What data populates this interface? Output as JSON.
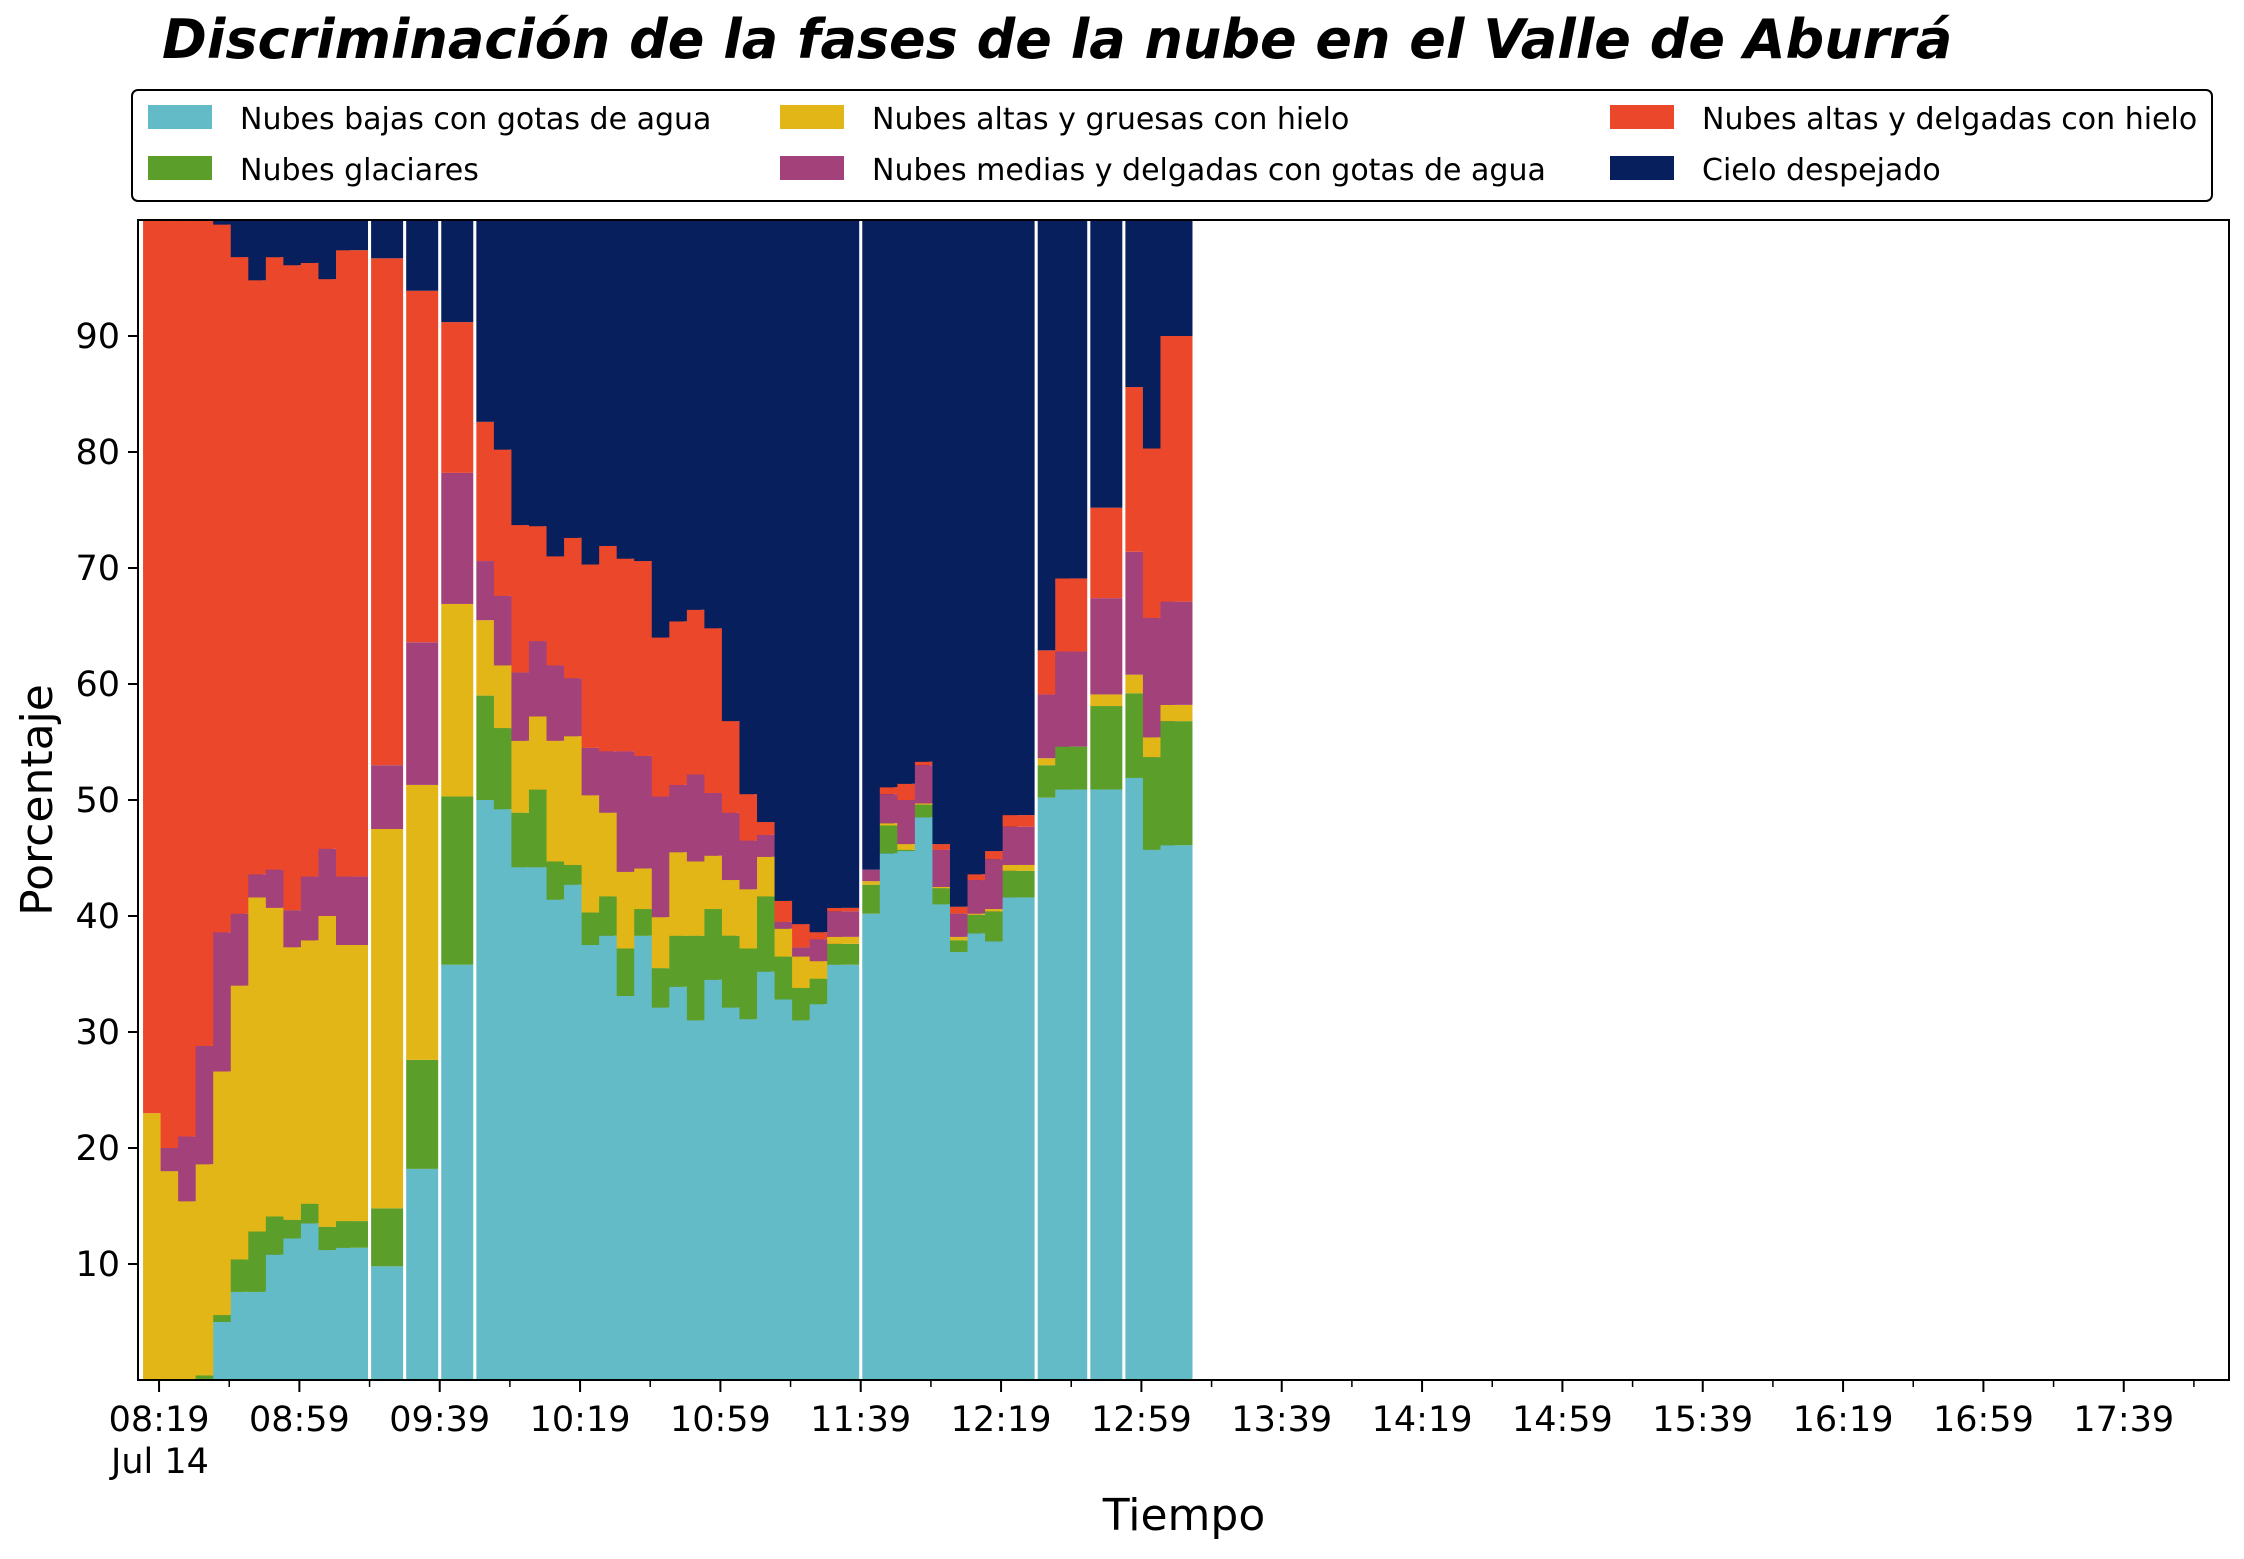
{
  "chart_data": {
    "type": "bar",
    "stacked": true,
    "title": "Discriminación de la fases de la nube en el Valle de Aburrá",
    "xlabel": "Tiempo",
    "ylabel": "Porcentaje",
    "ylim": [
      0,
      100
    ],
    "yticks": [
      10,
      20,
      30,
      40,
      50,
      60,
      70,
      80,
      90
    ],
    "x_time_range": [
      "08:13",
      "18:09"
    ],
    "xtick_labels": [
      "08:19",
      "08:59",
      "09:39",
      "10:19",
      "10:59",
      "11:39",
      "12:19",
      "12:59",
      "13:39",
      "14:19",
      "14:59",
      "15:39",
      "16:19",
      "16:59",
      "17:39"
    ],
    "xtick_sublabel": "Jul 14",
    "grid": false,
    "legend_position": "top",
    "legend_columns": 3,
    "series": [
      {
        "name": "Nubes bajas con gotas de agua",
        "color": "#64BBC8"
      },
      {
        "name": "Nubes glaciares",
        "color": "#5B9E2A"
      },
      {
        "name": "Nubes altas y gruesas con hielo",
        "color": "#E3B617"
      },
      {
        "name": "Nubes medias y delgadas con gotas de agua",
        "color": "#A3417B"
      },
      {
        "name": "Nubes altas y delgadas con hielo",
        "color": "#EB472B"
      },
      {
        "name": "Cielo despejado",
        "color": "#071F5C"
      }
    ],
    "bars": [
      {
        "time": "08:19",
        "values": [
          0,
          0,
          23,
          0,
          77,
          0
        ]
      },
      {
        "time": "08:24",
        "values": [
          0,
          0,
          18,
          2,
          80,
          0
        ]
      },
      {
        "time": "08:29",
        "values": [
          0,
          0,
          15.4,
          5.6,
          79,
          0
        ]
      },
      {
        "time": "08:34",
        "values": [
          0,
          0.4,
          18.2,
          10.2,
          71.2,
          0
        ]
      },
      {
        "time": "08:39",
        "values": [
          5,
          0.6,
          21,
          12,
          61,
          0.4
        ]
      },
      {
        "time": "08:44",
        "values": [
          7.6,
          2.8,
          23.6,
          6.2,
          56.6,
          3.2
        ]
      },
      {
        "time": "08:49",
        "values": [
          7.6,
          5.2,
          28.8,
          2,
          51.2,
          5.2
        ]
      },
      {
        "time": "08:54",
        "values": [
          10.8,
          3.3,
          26.6,
          3.3,
          52.8,
          3.2
        ]
      },
      {
        "time": "08:59",
        "values": [
          12.2,
          1.6,
          23.5,
          3.2,
          55.6,
          3.9
        ]
      },
      {
        "time": "09:04",
        "values": [
          13.5,
          1.7,
          22.7,
          5.5,
          52.9,
          3.7
        ]
      },
      {
        "time": "09:09",
        "values": [
          11.2,
          2,
          26.8,
          5.8,
          49.1,
          5.1
        ]
      },
      {
        "time": "09:14",
        "values": [
          11.4,
          2.3,
          23.8,
          5.9,
          54,
          2.6
        ]
      },
      {
        "time": "09:24",
        "values": [
          9.8,
          5,
          32.7,
          5.5,
          43.7,
          3.3
        ]
      },
      {
        "time": "09:34",
        "values": [
          18.2,
          9.4,
          23.7,
          12.3,
          30.3,
          6.1
        ]
      },
      {
        "time": "09:44",
        "values": [
          35.8,
          14.5,
          16.6,
          11.3,
          13,
          8.8
        ]
      },
      {
        "time": "09:54",
        "values": [
          50,
          9,
          6.5,
          5.1,
          12,
          17.4
        ]
      },
      {
        "time": "09:59",
        "values": [
          49.2,
          7,
          5.4,
          6,
          12.6,
          19.8
        ]
      },
      {
        "time": "10:04",
        "values": [
          44.2,
          4.7,
          6.2,
          5.9,
          12.7,
          26.3
        ]
      },
      {
        "time": "10:09",
        "values": [
          44.2,
          6.7,
          6.3,
          6.5,
          9.9,
          26.4
        ]
      },
      {
        "time": "10:14",
        "values": [
          41.4,
          3.3,
          10.4,
          6.5,
          9.4,
          29
        ]
      },
      {
        "time": "10:19",
        "values": [
          42.7,
          1.7,
          11.1,
          5,
          12.1,
          27.4
        ]
      },
      {
        "time": "10:24",
        "values": [
          37.5,
          2.8,
          10.1,
          4.1,
          15.8,
          29.7
        ]
      },
      {
        "time": "10:29",
        "values": [
          38.3,
          3.4,
          7.2,
          5.3,
          17.7,
          28.1
        ]
      },
      {
        "time": "10:34",
        "values": [
          33.1,
          4.1,
          6.6,
          10.4,
          16.6,
          29.2
        ]
      },
      {
        "time": "10:39",
        "values": [
          38.3,
          2.3,
          3.5,
          9.7,
          16.8,
          29.4
        ]
      },
      {
        "time": "10:44",
        "values": [
          32.1,
          3.4,
          4.4,
          10.4,
          13.7,
          36
        ]
      },
      {
        "time": "10:49",
        "values": [
          33.9,
          4.4,
          7.2,
          5.8,
          14.1,
          34.6
        ]
      },
      {
        "time": "10:54",
        "values": [
          31,
          7.3,
          6.4,
          7.5,
          14.2,
          33.6
        ]
      },
      {
        "time": "10:59",
        "values": [
          34.5,
          6.1,
          4.6,
          5.4,
          14.2,
          35.2
        ]
      },
      {
        "time": "11:04",
        "values": [
          32.1,
          6.2,
          4.8,
          5.8,
          7.9,
          43.2
        ]
      },
      {
        "time": "11:09",
        "values": [
          31.1,
          6.1,
          5.1,
          4.2,
          4,
          49.5
        ]
      },
      {
        "time": "11:14",
        "values": [
          35.2,
          6.5,
          3.4,
          1.9,
          1.1,
          51.9
        ]
      },
      {
        "time": "11:19",
        "values": [
          32.8,
          3.7,
          2.4,
          0.6,
          1.8,
          58.7
        ]
      },
      {
        "time": "11:24",
        "values": [
          31,
          2.8,
          2.7,
          0.8,
          2,
          60.7
        ]
      },
      {
        "time": "11:29",
        "values": [
          32.4,
          2.2,
          1.5,
          1.9,
          0.6,
          61.4
        ]
      },
      {
        "time": "11:34",
        "values": [
          35.8,
          1.8,
          0.6,
          2.2,
          0.3,
          59.3
        ]
      },
      {
        "time": "11:44",
        "values": [
          40.2,
          2.5,
          0.3,
          1,
          0,
          56
        ]
      },
      {
        "time": "11:49",
        "values": [
          45.4,
          2.4,
          0.2,
          2.5,
          0.6,
          48.9
        ]
      },
      {
        "time": "11:54",
        "values": [
          45.6,
          0.1,
          0.5,
          3.8,
          1.4,
          48.6
        ]
      },
      {
        "time": "11:59",
        "values": [
          48.5,
          1.1,
          0.1,
          3.3,
          0.3,
          46.7
        ]
      },
      {
        "time": "12:04",
        "values": [
          41,
          1.4,
          0.1,
          3.2,
          0.5,
          53.8
        ]
      },
      {
        "time": "12:09",
        "values": [
          36.9,
          1,
          0.3,
          2,
          0.6,
          59.2
        ]
      },
      {
        "time": "12:14",
        "values": [
          38.5,
          1.6,
          0.1,
          2.9,
          0.5,
          56.4
        ]
      },
      {
        "time": "12:19",
        "values": [
          37.8,
          2.6,
          0.2,
          4.3,
          0.7,
          54.4
        ]
      },
      {
        "time": "12:24",
        "values": [
          41.6,
          2.3,
          0.5,
          3.3,
          1,
          51.3
        ]
      },
      {
        "time": "12:34",
        "values": [
          50.2,
          2.8,
          0.6,
          5.5,
          3.8,
          37.1
        ]
      },
      {
        "time": "12:39",
        "values": [
          50.9,
          3.7,
          0,
          8.2,
          6.3,
          30.9
        ]
      },
      {
        "time": "12:49",
        "values": [
          50.9,
          7.2,
          1,
          8.3,
          7.8,
          24.8
        ]
      },
      {
        "time": "12:59",
        "values": [
          51.9,
          7.3,
          1.6,
          10.6,
          14.2,
          14.4
        ]
      },
      {
        "time": "13:04",
        "values": [
          45.7,
          8,
          1.7,
          10.3,
          14.6,
          19.7
        ]
      },
      {
        "time": "13:09",
        "values": [
          46.1,
          10.7,
          1.4,
          8.9,
          22.9,
          10
        ]
      }
    ]
  },
  "x_index_times": [
    "08:19",
    "08:24",
    "08:29",
    "08:34",
    "08:39",
    "08:44",
    "08:49",
    "08:54",
    "08:59",
    "09:04",
    "09:09",
    "09:14",
    "09:24",
    "09:34",
    "09:44",
    "09:54",
    "09:59",
    "10:04",
    "10:09",
    "10:14",
    "10:19",
    "10:24",
    "10:29",
    "10:34",
    "10:39",
    "10:44",
    "10:49",
    "10:54",
    "10:59",
    "11:04",
    "11:09",
    "11:14",
    "11:19",
    "11:24",
    "11:29",
    "11:34",
    "11:44",
    "11:49",
    "11:54",
    "11:59",
    "12:04",
    "12:09",
    "12:14",
    "12:19",
    "12:24",
    "12:34",
    "12:39",
    "12:49",
    "12:59",
    "13:04",
    "13:09"
  ]
}
